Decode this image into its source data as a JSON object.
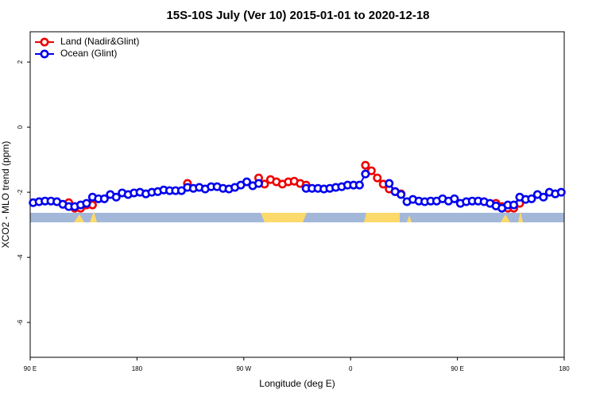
{
  "chart_data": {
    "type": "line",
    "title": "15S-10S July (Ver 10)   2015-01-01 to 2020-12-18",
    "x_label": "Longitude (deg E)",
    "y_label": "XCO2 - MLO trend (ppm)",
    "x": [
      92.5,
      97.5,
      102.5,
      107.5,
      112.5,
      117.5,
      122.5,
      127.5,
      132.5,
      137.5,
      142.5,
      147.5,
      152.5,
      157.5,
      162.5,
      167.5,
      172.5,
      177.5,
      182.5,
      187.5,
      192.5,
      197.5,
      202.5,
      207.5,
      212.5,
      217.5,
      222.5,
      227.5,
      232.5,
      237.5,
      242.5,
      247.5,
      252.5,
      257.5,
      262.5,
      267.5,
      272.5,
      277.5,
      282.5,
      287.5,
      292.5,
      297.5,
      302.5,
      307.5,
      312.5,
      317.5,
      322.5,
      327.5,
      332.5,
      337.5,
      342.5,
      347.5,
      352.5,
      357.5,
      362.5,
      367.5,
      372.5,
      377.5,
      382.5,
      387.5,
      392.5,
      397.5,
      402.5,
      407.5,
      412.5,
      417.5,
      422.5,
      427.5,
      432.5,
      437.5,
      442.5,
      447.5,
      452.5,
      457.5,
      462.5,
      467.5,
      472.5,
      477.5,
      482.5,
      487.5,
      492.5,
      497.5,
      502.5,
      507.5,
      512.5,
      517.5,
      522.5,
      527.5,
      532.5,
      537.5
    ],
    "series": [
      {
        "name": "Land (Nadir&Glint)",
        "color": "#ee0000",
        "values": [
          null,
          null,
          null,
          null,
          null,
          null,
          -2.32,
          -2.49,
          -2.49,
          -2.39,
          -2.39,
          null,
          null,
          null,
          null,
          null,
          null,
          null,
          null,
          null,
          null,
          null,
          null,
          null,
          null,
          null,
          -1.73,
          null,
          null,
          null,
          null,
          null,
          null,
          null,
          null,
          null,
          null,
          null,
          -1.56,
          -1.75,
          -1.61,
          -1.68,
          -1.75,
          -1.68,
          -1.66,
          -1.73,
          -1.78,
          null,
          null,
          null,
          null,
          null,
          null,
          null,
          null,
          null,
          -1.17,
          -1.34,
          -1.56,
          -1.75,
          -1.9,
          -1.98,
          -2.05,
          null,
          null,
          null,
          null,
          null,
          null,
          null,
          null,
          null,
          null,
          null,
          null,
          null,
          null,
          null,
          -2.34,
          -2.44,
          -2.49,
          -2.49,
          -2.34,
          null,
          null,
          null,
          null,
          null,
          null,
          null
        ]
      },
      {
        "name": "Ocean (Glint)",
        "color": "#0000ee",
        "values": [
          -2.32,
          -2.29,
          -2.27,
          -2.27,
          -2.29,
          -2.37,
          -2.44,
          -2.44,
          -2.39,
          -2.34,
          -2.15,
          -2.2,
          -2.2,
          -2.07,
          -2.15,
          -2.02,
          -2.07,
          -2.02,
          -2.0,
          -2.05,
          -2.0,
          -1.98,
          -1.93,
          -1.95,
          -1.95,
          -1.95,
          -1.85,
          -1.88,
          -1.85,
          -1.9,
          -1.83,
          -1.83,
          -1.88,
          -1.9,
          -1.85,
          -1.78,
          -1.68,
          -1.8,
          -1.73,
          null,
          null,
          null,
          null,
          null,
          null,
          null,
          -1.88,
          -1.88,
          -1.88,
          -1.9,
          -1.88,
          -1.85,
          -1.83,
          -1.78,
          -1.78,
          -1.78,
          -1.44,
          null,
          null,
          null,
          -1.73,
          -1.98,
          -2.07,
          -2.29,
          -2.22,
          -2.27,
          -2.29,
          -2.27,
          -2.27,
          -2.2,
          -2.27,
          -2.2,
          -2.34,
          -2.29,
          -2.27,
          -2.27,
          -2.29,
          -2.34,
          -2.42,
          -2.49,
          -2.39,
          -2.39,
          -2.15,
          -2.22,
          -2.2,
          -2.07,
          -2.15,
          -2.0,
          -2.05,
          -2.0
        ]
      }
    ],
    "xlim": [
      90,
      540
    ],
    "xticks": [
      {
        "value": 90,
        "label": "90 E"
      },
      {
        "value": 180,
        "label": "180"
      },
      {
        "value": 270,
        "label": "90 W"
      },
      {
        "value": 360,
        "label": "0"
      },
      {
        "value": 450,
        "label": "90 E"
      },
      {
        "value": 540,
        "label": "180"
      }
    ],
    "ylim": [
      -7.07,
      2.93
    ],
    "yticks": [
      2,
      0,
      -2,
      -4,
      -6
    ],
    "legend": "top-left"
  }
}
